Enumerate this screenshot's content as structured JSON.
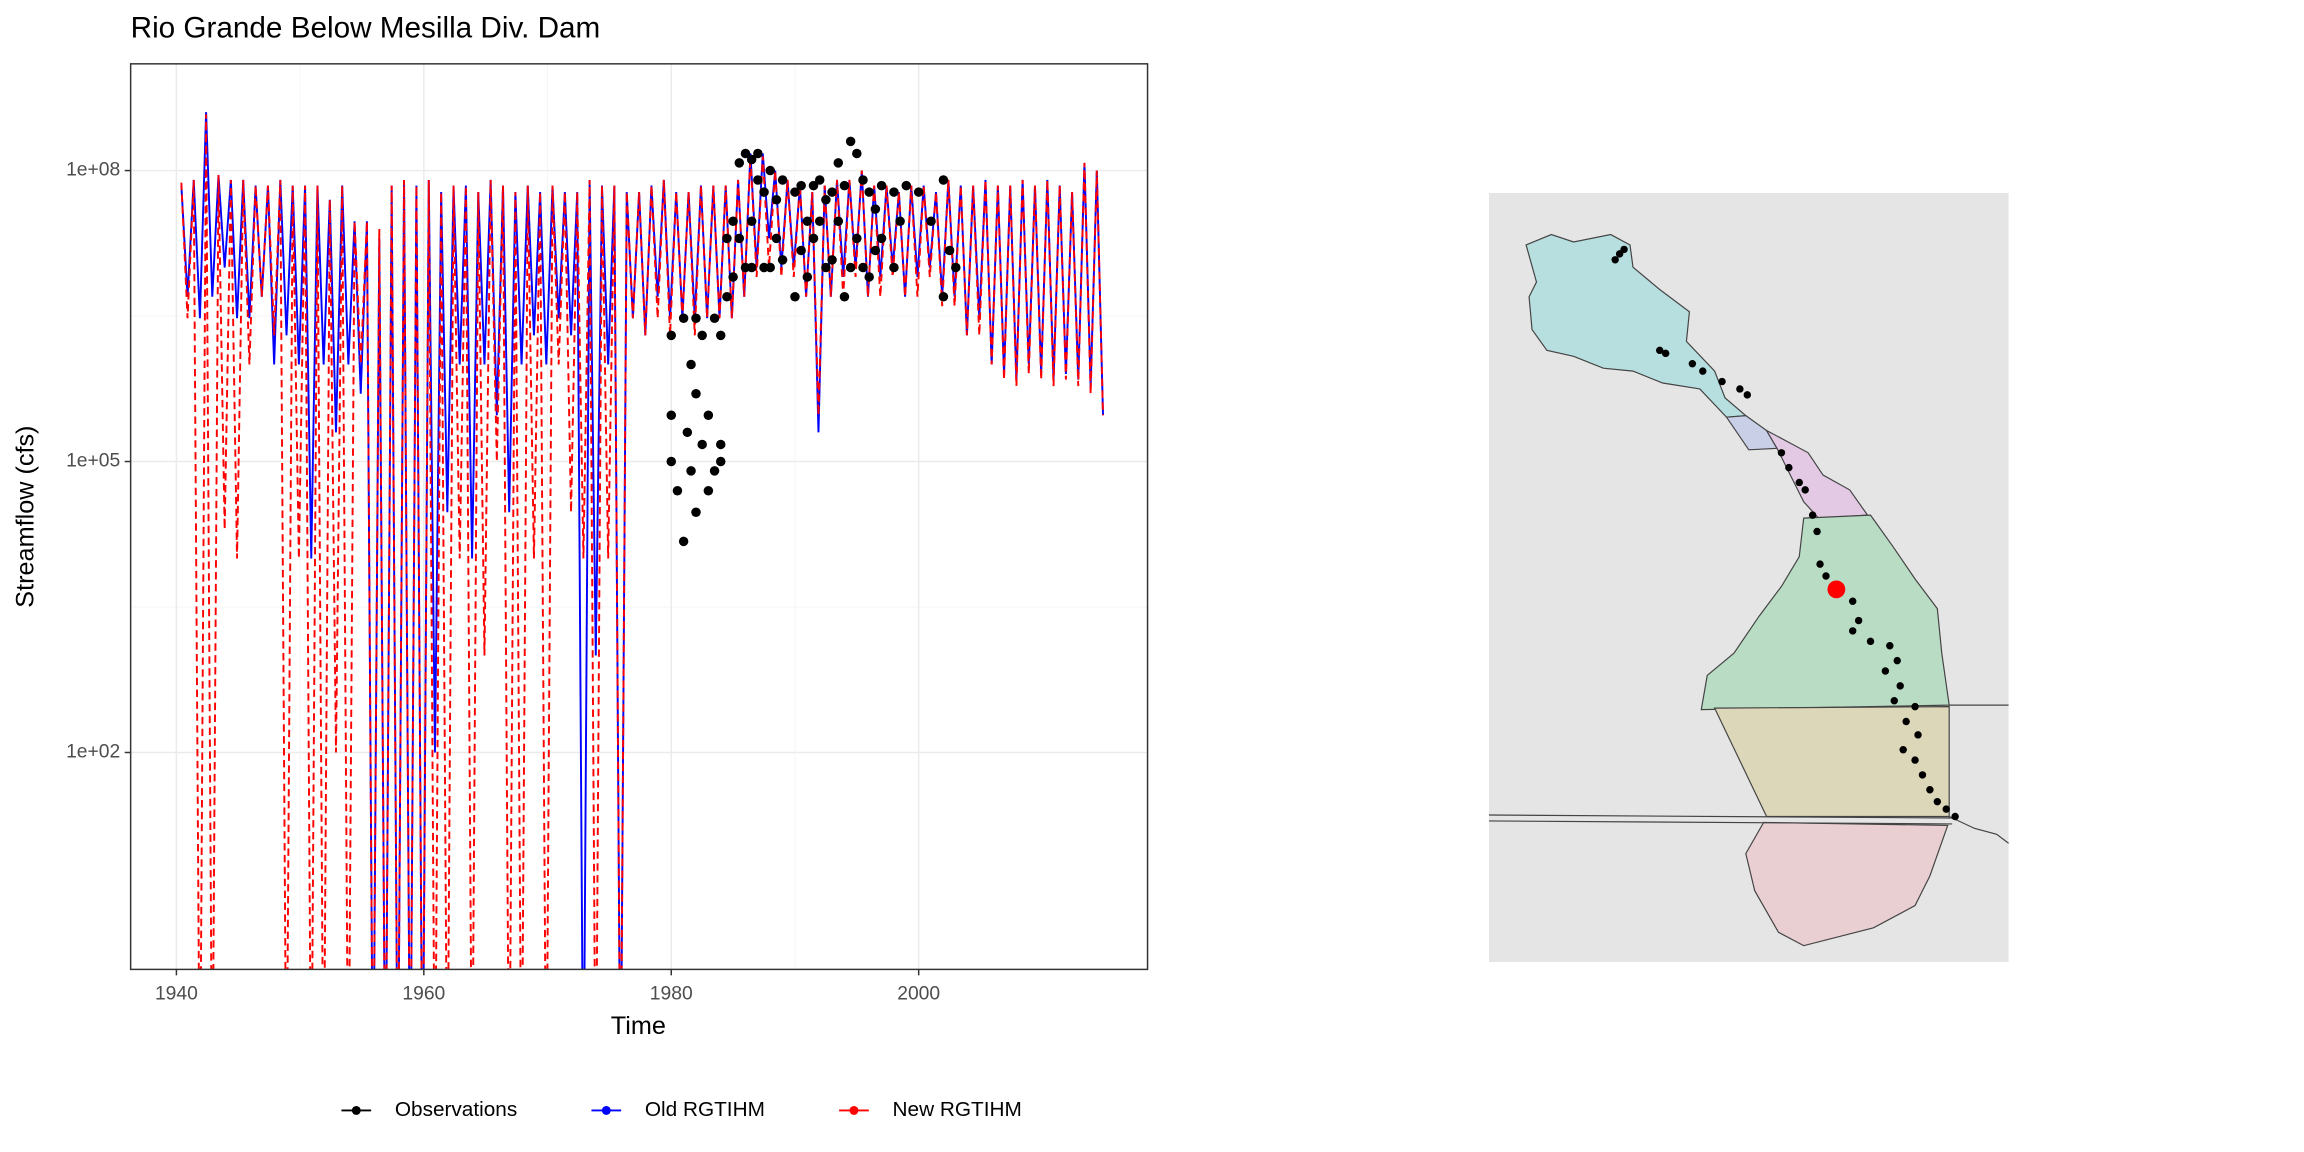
{
  "chart_data": {
    "type": "line",
    "title": "Rio Grande Below Mesilla Div. Dam",
    "x_label": "Time",
    "y_label": "Streamflow (cfs)",
    "log_y": true,
    "grid": true,
    "legend": "bottom",
    "xlim": [
      1936.3,
      2018.5
    ],
    "xticks": [
      1940,
      1960,
      1980,
      2000
    ],
    "ylim": [
      0.58,
      1260000000
    ],
    "yticks": [
      {
        "value": 100,
        "label": "1e+02"
      },
      {
        "value": 100000,
        "label": "1e+05"
      },
      {
        "value": 100000000,
        "label": "1e+08"
      }
    ],
    "x": [
      1940.4,
      1940.9,
      1941.4,
      1941.9,
      1942.4,
      1942.9,
      1943.4,
      1943.9,
      1944.4,
      1944.9,
      1945.4,
      1945.9,
      1946.4,
      1946.9,
      1947.4,
      1947.9,
      1948.4,
      1948.9,
      1949.4,
      1949.9,
      1950.4,
      1950.9,
      1951.4,
      1951.9,
      1952.4,
      1952.9,
      1953.4,
      1953.9,
      1954.4,
      1954.9,
      1955.4,
      1955.9,
      1956.4,
      1956.9,
      1957.4,
      1957.9,
      1958.4,
      1958.9,
      1959.4,
      1959.9,
      1960.4,
      1960.9,
      1961.4,
      1961.9,
      1962.4,
      1962.9,
      1963.4,
      1963.9,
      1964.4,
      1964.9,
      1965.4,
      1965.9,
      1966.4,
      1966.9,
      1967.4,
      1967.9,
      1968.4,
      1968.9,
      1969.4,
      1969.9,
      1970.4,
      1970.9,
      1971.4,
      1971.9,
      1972.4,
      1972.9,
      1973.4,
      1973.9,
      1974.4,
      1974.9,
      1975.4,
      1975.9,
      1976.4,
      1976.9,
      1977.4,
      1977.9,
      1978.4,
      1978.9,
      1979.4,
      1979.9,
      1980.4,
      1980.9,
      1981.4,
      1981.9,
      1982.4,
      1982.9,
      1983.4,
      1983.9,
      1984.4,
      1984.9,
      1985.4,
      1985.9,
      1986.4,
      1986.9,
      1987.4,
      1987.9,
      1988.4,
      1988.9,
      1989.4,
      1989.9,
      1990.4,
      1990.9,
      1991.4,
      1991.9,
      1992.4,
      1992.9,
      1993.4,
      1993.9,
      1994.4,
      1994.9,
      1995.4,
      1995.9,
      1996.4,
      1996.9,
      1997.4,
      1997.9,
      1998.4,
      1998.9,
      1999.4,
      1999.9,
      2000.4,
      2000.9,
      2001.4,
      2001.9,
      2002.4,
      2002.9,
      2003.4,
      2003.9,
      2004.4,
      2004.9,
      2005.4,
      2005.9,
      2006.4,
      2006.9,
      2007.4,
      2007.9,
      2008.4,
      2008.9,
      2009.4,
      2009.9,
      2010.4,
      2010.9,
      2011.4,
      2011.9,
      2012.4,
      2012.9,
      2013.4,
      2013.9,
      2014.4,
      2014.9
    ],
    "series": [
      {
        "name": "Observations",
        "color": "#000000",
        "mode": "points",
        "x": [
          1980,
          1980,
          1980,
          1980.5,
          1981,
          1981,
          1981.3,
          1981.6,
          1981.6,
          1982,
          1982,
          1982,
          1982.5,
          1982.5,
          1983,
          1983,
          1983.5,
          1983.5,
          1984,
          1984,
          1984,
          1984.5,
          1984.5,
          1985,
          1985,
          1985.5,
          1985.5,
          1986,
          1986,
          1986.5,
          1986.5,
          1986.5,
          1987,
          1987,
          1987.5,
          1987.5,
          1988,
          1988,
          1988.5,
          1988.5,
          1989,
          1989,
          1990,
          1990,
          1990.5,
          1990.5,
          1991,
          1991,
          1991.5,
          1991.5,
          1992,
          1992,
          1992.5,
          1992.5,
          1993,
          1993,
          1993.5,
          1993.5,
          1994,
          1994,
          1994.5,
          1994.5,
          1995,
          1995,
          1995.5,
          1995.5,
          1996,
          1996,
          1996.5,
          1996.5,
          1997,
          1997,
          1998,
          1998,
          1998.5,
          1999,
          2000,
          2001,
          2002,
          2002,
          2002.5,
          2003
        ],
        "values": [
          300000,
          100000,
          2000000,
          50000,
          3000000,
          15000,
          200000,
          80000,
          1000000,
          3000000,
          500000,
          30000,
          150000,
          2000000,
          300000,
          50000,
          3000000,
          80000,
          2000000,
          150000,
          100000,
          5000000,
          20000000,
          30000000,
          8000000,
          120000000,
          20000000,
          150000000,
          10000000,
          130000000,
          30000000,
          10000000,
          150000000,
          80000000,
          10000000,
          60000000,
          100000000,
          10000000,
          50000000,
          20000000,
          80000000,
          12000000,
          60000000,
          5000000,
          70000000,
          15000000,
          30000000,
          8000000,
          70000000,
          20000000,
          80000000,
          30000000,
          50000000,
          10000000,
          60000000,
          12000000,
          120000000,
          30000000,
          70000000,
          5000000,
          200000000,
          10000000,
          150000000,
          20000000,
          80000000,
          10000000,
          60000000,
          8000000,
          40000000,
          15000000,
          70000000,
          20000000,
          60000000,
          10000000,
          30000000,
          70000000,
          60000000,
          30000000,
          80000000,
          5000000,
          15000000,
          10000000
        ]
      },
      {
        "name": "Old RGTIHM",
        "color": "#0000ff",
        "mode": "line",
        "dash": false,
        "values": [
          70000000,
          5000000,
          80000000,
          3000000,
          400000000,
          5000000,
          90000000,
          10000000,
          80000000,
          3000000,
          80000000,
          3000000,
          70000000,
          5000000,
          70000000,
          1000000,
          80000000,
          2000000,
          70000000,
          1000000,
          70000000,
          10000,
          70000000,
          1000000,
          50000000,
          200000,
          70000000,
          1000000,
          30000000,
          500000,
          30000000,
          0.01,
          20000000,
          0.01,
          70000000,
          0.01,
          80000000,
          0.01,
          70000000,
          0.01,
          80000000,
          100,
          60000000,
          30000,
          70000000,
          1000000,
          70000000,
          10000,
          60000000,
          1000000,
          80000000,
          300000,
          70000000,
          30000,
          60000000,
          1000000,
          70000000,
          2000000,
          60000000,
          1000000,
          70000000,
          3000000,
          60000000,
          2000000,
          60000000,
          0.01,
          80000000,
          1000,
          70000000,
          1000000,
          70000000,
          0.01,
          60000000,
          3000000,
          60000000,
          2000000,
          70000000,
          5000000,
          80000000,
          3000000,
          60000000,
          3000000,
          60000000,
          3000000,
          70000000,
          3000000,
          70000000,
          3000000,
          70000000,
          3000000,
          80000000,
          5000000,
          150000000,
          10000000,
          150000000,
          20000000,
          100000000,
          10000000,
          80000000,
          10000000,
          70000000,
          5000000,
          60000000,
          200000,
          70000000,
          5000000,
          80000000,
          8000000,
          80000000,
          10000000,
          100000000,
          5000000,
          70000000,
          8000000,
          70000000,
          10000000,
          60000000,
          5000000,
          70000000,
          8000000,
          70000000,
          10000000,
          60000000,
          5000000,
          80000000,
          5000000,
          70000000,
          2000000,
          70000000,
          3000000,
          80000000,
          1000000,
          70000000,
          800000,
          70000000,
          700000,
          80000000,
          1000000,
          70000000,
          800000,
          80000000,
          700000,
          70000000,
          800000,
          60000000,
          700000,
          120000000,
          600000,
          100000000,
          300000
        ]
      },
      {
        "name": "New RGTIHM",
        "color": "#ff0000",
        "mode": "line",
        "dash": true,
        "values": [
          75000000,
          3000000,
          80000000,
          0.01,
          380000000,
          0.01,
          90000000,
          20000,
          80000000,
          10000,
          80000000,
          1000000,
          70000000,
          5000000,
          70000000,
          2000000,
          80000000,
          0.01,
          70000000,
          10000,
          70000000,
          0.01,
          70000000,
          0.01,
          50000000,
          100,
          70000000,
          0.01,
          30000000,
          1000000,
          30000000,
          0.01,
          25000000,
          0.01,
          70000000,
          0.01,
          80000000,
          0.01,
          70000000,
          0.01,
          80000000,
          0.01,
          60000000,
          0.01,
          70000000,
          10000,
          70000000,
          0.01,
          60000000,
          1000,
          80000000,
          100000,
          70000000,
          0.01,
          60000000,
          0.01,
          70000000,
          10000,
          60000000,
          0.01,
          70000000,
          1000000,
          60000000,
          30000,
          60000000,
          10000,
          80000000,
          0.01,
          70000000,
          10000,
          70000000,
          0.01,
          60000000,
          3000000,
          60000000,
          2000000,
          70000000,
          3000000,
          80000000,
          2000000,
          60000000,
          3000000,
          60000000,
          2000000,
          70000000,
          3000000,
          70000000,
          3000000,
          70000000,
          3000000,
          80000000,
          5000000,
          140000000,
          8000000,
          140000000,
          10000000,
          100000000,
          8000000,
          80000000,
          8000000,
          70000000,
          5000000,
          60000000,
          300000,
          70000000,
          5000000,
          80000000,
          5000000,
          80000000,
          8000000,
          100000000,
          5000000,
          70000000,
          5000000,
          70000000,
          8000000,
          60000000,
          5000000,
          70000000,
          5000000,
          70000000,
          8000000,
          60000000,
          4000000,
          80000000,
          4000000,
          70000000,
          2000000,
          70000000,
          2000000,
          80000000,
          1000000,
          70000000,
          700000,
          70000000,
          600000,
          80000000,
          800000,
          70000000,
          700000,
          80000000,
          600000,
          70000000,
          700000,
          60000000,
          600000,
          120000000,
          500000,
          100000000,
          300000
        ]
      }
    ]
  }
}
